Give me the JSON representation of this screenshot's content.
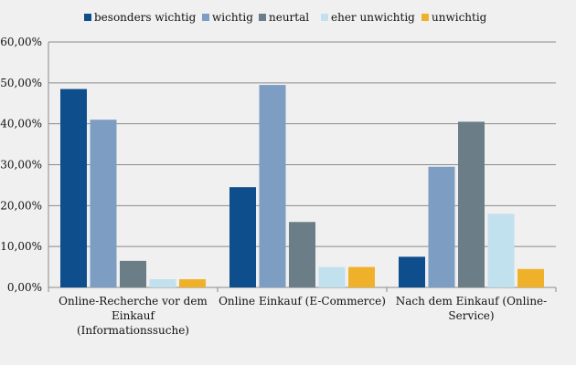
{
  "chart_data": {
    "type": "bar",
    "title": "",
    "xlabel": "",
    "ylabel": "",
    "categories": [
      [
        "Online-Recherche vor dem",
        "Einkauf",
        "(Informationssuche)"
      ],
      [
        "Online Einkauf (E-Commerce)"
      ],
      [
        "Nach dem Einkauf (Online-",
        "Service)"
      ]
    ],
    "series": [
      {
        "name": "besonders wichtig",
        "color": "#0f4e8c",
        "values": [
          48.5,
          24.5,
          7.5
        ]
      },
      {
        "name": "wichtig",
        "color": "#7d9ec2",
        "values": [
          41.0,
          49.5,
          29.5
        ]
      },
      {
        "name": "neurtal",
        "color": "#6b7d86",
        "values": [
          6.5,
          16.0,
          40.5
        ]
      },
      {
        "name": "eher unwichtig",
        "color": "#c2e1ef",
        "values": [
          2.0,
          5.0,
          18.0
        ]
      },
      {
        "name": "unwichtig",
        "color": "#f0b12a",
        "values": [
          2.0,
          5.0,
          4.5
        ]
      }
    ],
    "ylim": [
      0,
      60
    ],
    "yticks": [
      0,
      10,
      20,
      30,
      40,
      50,
      60
    ],
    "ytick_labels": [
      "0,00%",
      "10,00%",
      "20,00%",
      "30,00%",
      "40,00%",
      "50,00%",
      "60,00%"
    ],
    "grid": true,
    "legend_position": "top"
  }
}
